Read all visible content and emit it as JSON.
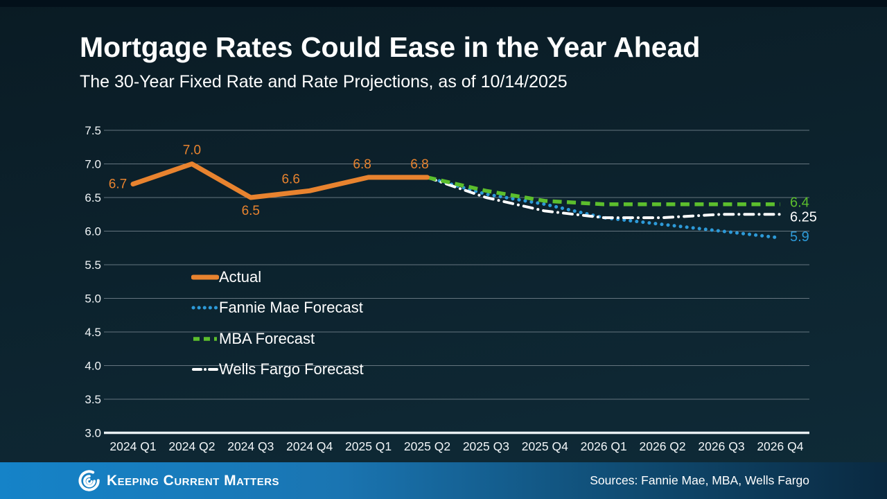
{
  "slide": {
    "title": "Mortgage Rates Could Ease in the Year Ahead",
    "subtitle": "The 30-Year Fixed Rate and Rate Projections, as of 10/14/2025"
  },
  "colors": {
    "background_top": "#0a1b24",
    "background_bottom": "#0f2b38",
    "top_strip": "#03101a",
    "gridline": "#65757f",
    "axis_line": "#e9eff2",
    "tick_text": "#f2f6f8",
    "actual": "#e8832f",
    "fannie_mae": "#2d9ad8",
    "mba": "#5cbe2d",
    "wells_fargo": "#ffffff"
  },
  "chart_data": {
    "type": "line",
    "title": "Mortgage Rates Could Ease in the Year Ahead",
    "subtitle": "The 30-Year Fixed Rate and Rate Projections, as of 10/14/2025",
    "categories": [
      "2024 Q1",
      "2024 Q2",
      "2024 Q3",
      "2024 Q4",
      "2025 Q1",
      "2025 Q2",
      "2025 Q3",
      "2025 Q4",
      "2026 Q1",
      "2026 Q2",
      "2026 Q3",
      "2026 Q4"
    ],
    "ylim": [
      3.0,
      7.5
    ],
    "yticks": [
      "7.5",
      "7.0",
      "6.5",
      "6.0",
      "5.5",
      "5.0",
      "4.5",
      "4.0",
      "3.5",
      "3.0"
    ],
    "grid": true,
    "legend_position": "inside-left",
    "series": [
      {
        "name": "Actual",
        "color": "#e8832f",
        "style": "solid",
        "start_index": 0,
        "values": [
          6.7,
          7.0,
          6.5,
          6.6,
          6.8,
          6.8
        ],
        "point_labels": [
          "6.7",
          "7.0",
          "6.5",
          "6.6",
          "6.8",
          "6.8"
        ],
        "point_label_offsets": [
          [
            -22,
            0
          ],
          [
            0,
            -20
          ],
          [
            0,
            19
          ],
          [
            -27,
            -17
          ],
          [
            -9,
            -19
          ],
          [
            -11,
            -19
          ]
        ]
      },
      {
        "name": "Fannie Mae Forecast",
        "color": "#2d9ad8",
        "style": "dotted",
        "start_index": 5,
        "values": [
          6.8,
          6.55,
          6.4,
          6.2,
          6.1,
          6.0,
          5.9
        ],
        "end_label": "5.9",
        "end_label_dy": -2
      },
      {
        "name": "MBA Forecast",
        "color": "#5cbe2d",
        "style": "dashed",
        "start_index": 5,
        "values": [
          6.8,
          6.6,
          6.45,
          6.4,
          6.4,
          6.4,
          6.4
        ],
        "end_label": "6.4",
        "end_label_dy": -3
      },
      {
        "name": "Wells Fargo Forecast",
        "color": "#ffffff",
        "style": "dashdot",
        "start_index": 5,
        "values": [
          6.8,
          6.5,
          6.3,
          6.2,
          6.2,
          6.25,
          6.25
        ],
        "end_label": "6.25",
        "end_label_dy": 3
      }
    ]
  },
  "footer": {
    "brand": "Keeping Current Matters",
    "sources": "Sources: Fannie Mae, MBA, Wells Fargo",
    "bar_left": "#1583c8",
    "bar_mid": "#1a75b2",
    "bar_dark": "#0f4a70",
    "bar_right": "#0a2940"
  }
}
